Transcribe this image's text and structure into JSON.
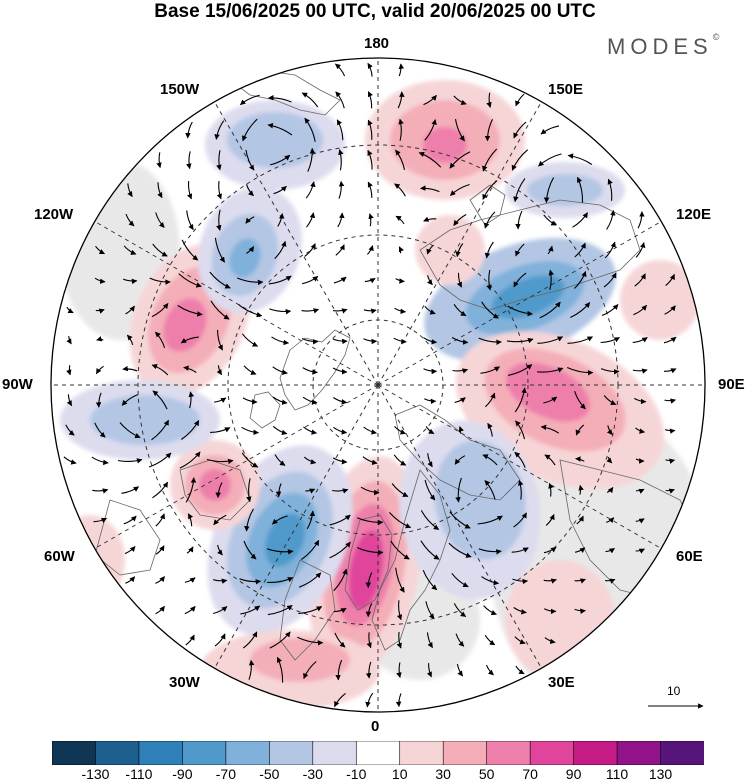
{
  "title": "Base 15/06/2025 00 UTC, valid 20/06/2025 00 UTC",
  "brand": {
    "name": "MODES",
    "mark": "©"
  },
  "longitude_labels": {
    "top": "180",
    "bottom": "0",
    "left": "90W",
    "right": "90E",
    "upper_left": "150W",
    "upper_right": "150E",
    "mid_upper_left": "120W",
    "mid_upper_right": "120E",
    "mid_lower_left": "60W",
    "mid_lower_right": "60E",
    "lower_left": "30W",
    "lower_right": "30E"
  },
  "reference_vector": {
    "label": "10"
  },
  "colorbar": {
    "colors": [
      "#0f3554",
      "#1d5f8e",
      "#2f80b8",
      "#4f9acb",
      "#7fb1da",
      "#b3c6e4",
      "#dcdcee",
      "#ffffff",
      "#f6d5d7",
      "#f4aeb8",
      "#ee7fab",
      "#e0459b",
      "#c41b87",
      "#90138a",
      "#57147a"
    ],
    "tick_labels": [
      "-130",
      "-110",
      "-90",
      "-70",
      "-50",
      "-30",
      "-10",
      "10",
      "30",
      "50",
      "70",
      "90",
      "110",
      "130"
    ]
  },
  "anomaly_centers": [
    {
      "sign": "negative",
      "level": "-90",
      "sector": "near 90E-120E"
    },
    {
      "sign": "positive",
      "level": "70",
      "sector": "near 90E"
    },
    {
      "sign": "positive",
      "level": "90",
      "sector": "near 0-15E"
    },
    {
      "sign": "negative",
      "level": "-90",
      "sector": "near 30W"
    },
    {
      "sign": "positive",
      "level": "70",
      "sector": "near 60W-75W"
    },
    {
      "sign": "positive",
      "level": "50",
      "sector": "near 105W"
    },
    {
      "sign": "negative",
      "level": "-50",
      "sector": "near 135W"
    },
    {
      "sign": "positive",
      "level": "50",
      "sector": "near 165E"
    },
    {
      "sign": "negative",
      "level": "-30",
      "sector": "near 135E"
    }
  ]
}
